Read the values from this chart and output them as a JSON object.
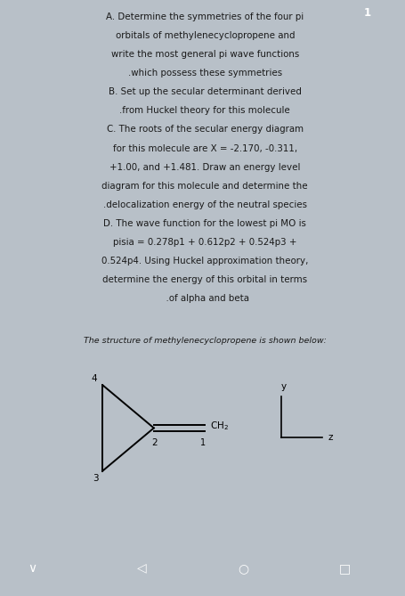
{
  "top_bg_color": "#d4dbe2",
  "bottom_bg_color": "#ffffff",
  "page_bg": "#b8c0c8",
  "text_color": "#1a1a1a",
  "text_lines": [
    "A. Determine the symmetries of the four pi",
    "orbitals of methylenecyclopropene and",
    "write the most general pi wave functions",
    ".which possess these symmetries",
    "B. Set up the secular determinant derived",
    ".from Huckel theory for this molecule",
    "C. The roots of the secular energy diagram",
    "for this molecule are X = -2.170, -0.311,",
    "+1.00, and +1.481. Draw an energy level",
    "diagram for this molecule and determine the",
    ".delocalization energy of the neutral species",
    "D. The wave function for the lowest pi MO is",
    "pisia = 0.278p1 + 0.612p2 + 0.524p3 +",
    "0.524p4. Using Huckel approximation theory,",
    "determine the energy of this orbital in terms",
    "  .of alpha and beta"
  ],
  "bottom_label": "The structure of methylenecyclopropene is shown below:",
  "number_badge_color": "#2d7a4f",
  "number_badge_text": "1",
  "bottom_line_color": "#222222",
  "fig_width": 4.56,
  "fig_height": 6.69,
  "dpi": 100
}
